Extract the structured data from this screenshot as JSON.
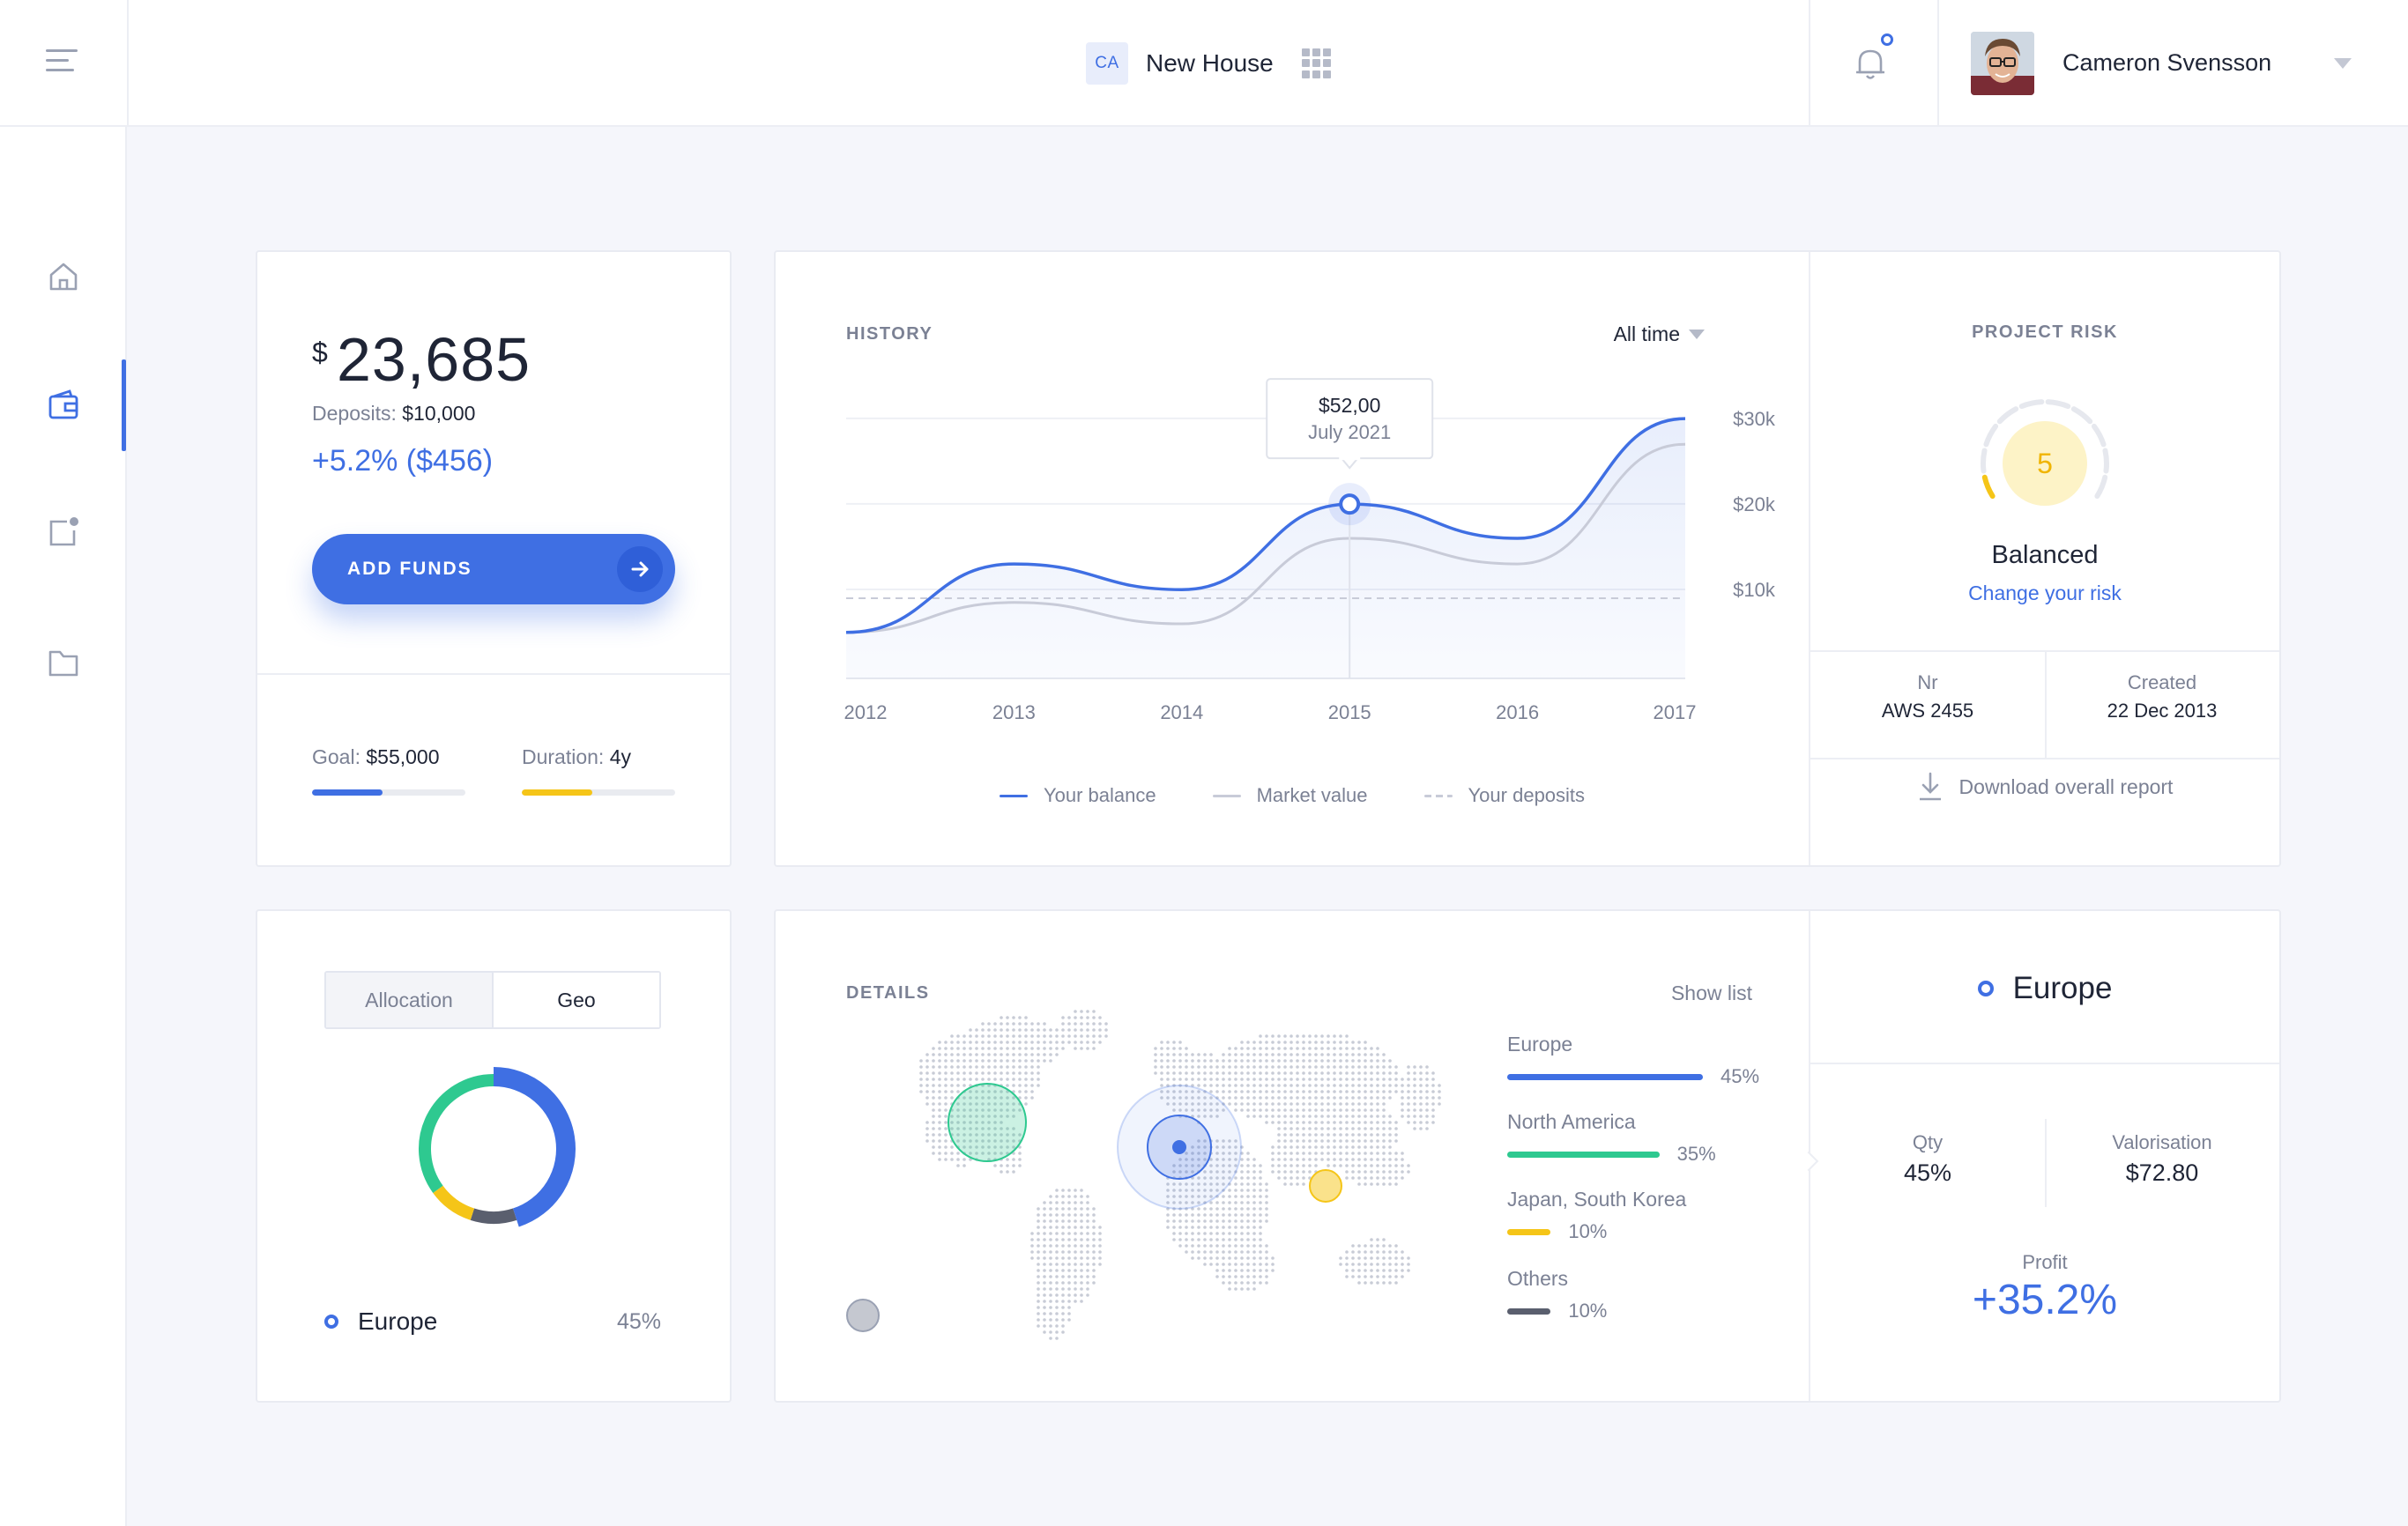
{
  "header": {
    "project_badge": "CA",
    "project_name": "New House",
    "user_name": "Cameron Svensson"
  },
  "sidebar": {
    "items": [
      {
        "name": "home-icon"
      },
      {
        "name": "wallet-icon",
        "active": true
      },
      {
        "name": "notes-icon"
      },
      {
        "name": "folder-icon"
      }
    ]
  },
  "balance": {
    "currency": "$",
    "amount": "23,685",
    "deposits_label": "Deposits:",
    "deposits_value": "$10,000",
    "change": "+5.2% ($456)",
    "button_label": "ADD FUNDS",
    "goal_label": "Goal:",
    "goal_value": "$55,000",
    "goal_progress": 0.46,
    "duration_label": "Duration:",
    "duration_value": "4y",
    "duration_progress": 0.46
  },
  "history": {
    "title": "HISTORY",
    "filter": "All time",
    "tooltip_value": "$52,00",
    "tooltip_date": "July 2021",
    "legend": [
      "Your balance",
      "Market value",
      "Your deposits"
    ]
  },
  "chart_data": {
    "type": "line",
    "x": [
      "2012",
      "2013",
      "2014",
      "2015",
      "2016",
      "2017"
    ],
    "y_ticks": [
      "$30k",
      "$20k",
      "$10k"
    ],
    "series": [
      {
        "name": "Your balance",
        "color": "#3f6fe3",
        "values": [
          6000,
          14000,
          11000,
          21000,
          17000,
          31000
        ]
      },
      {
        "name": "Market value",
        "color": "#c8cbd8",
        "values": [
          6000,
          9500,
          7000,
          17000,
          14000,
          28000
        ]
      },
      {
        "name": "Your deposits",
        "color": "#c8cbd8",
        "values": [
          10000,
          10000,
          10000,
          10000,
          10000,
          10000
        ]
      }
    ],
    "highlight_index": 3
  },
  "risk": {
    "title": "PROJECT RISK",
    "level": "5",
    "level_fraction": 0.1,
    "status": "Balanced",
    "link": "Change your risk",
    "nr_label": "Nr",
    "nr_value": "AWS 2455",
    "created_label": "Created",
    "created_value": "22 Dec 2013",
    "download": "Download overall report"
  },
  "allocation": {
    "tab_allocation": "Allocation",
    "tab_geo": "Geo",
    "selected_region": "Europe",
    "selected_pct": "45%",
    "donut": [
      {
        "name": "Europe",
        "value": 45,
        "color": "#3f6fe3"
      },
      {
        "name": "Others",
        "value": 10,
        "color": "#5a5f6e"
      },
      {
        "name": "Japan, South Korea",
        "value": 10,
        "color": "#f5c518"
      },
      {
        "name": "North America",
        "value": 35,
        "color": "#2ec990"
      }
    ]
  },
  "details": {
    "title": "DETAILS",
    "show_list": "Show list",
    "regions": [
      {
        "name": "Europe",
        "pct": "45%",
        "value": 45,
        "color": "#3f6fe3"
      },
      {
        "name": "North America",
        "pct": "35%",
        "value": 35,
        "color": "#2ec990"
      },
      {
        "name": "Japan, South Korea",
        "pct": "10%",
        "value": 10,
        "color": "#f5c518"
      },
      {
        "name": "Others",
        "pct": "10%",
        "value": 10,
        "color": "#5a5f6e"
      }
    ]
  },
  "europe": {
    "title": "Europe",
    "qty_label": "Qty",
    "qty_value": "45%",
    "valorisation_label": "Valorisation",
    "valorisation_value": "$72.80",
    "profit_label": "Profit",
    "profit_value": "+35.2%"
  }
}
